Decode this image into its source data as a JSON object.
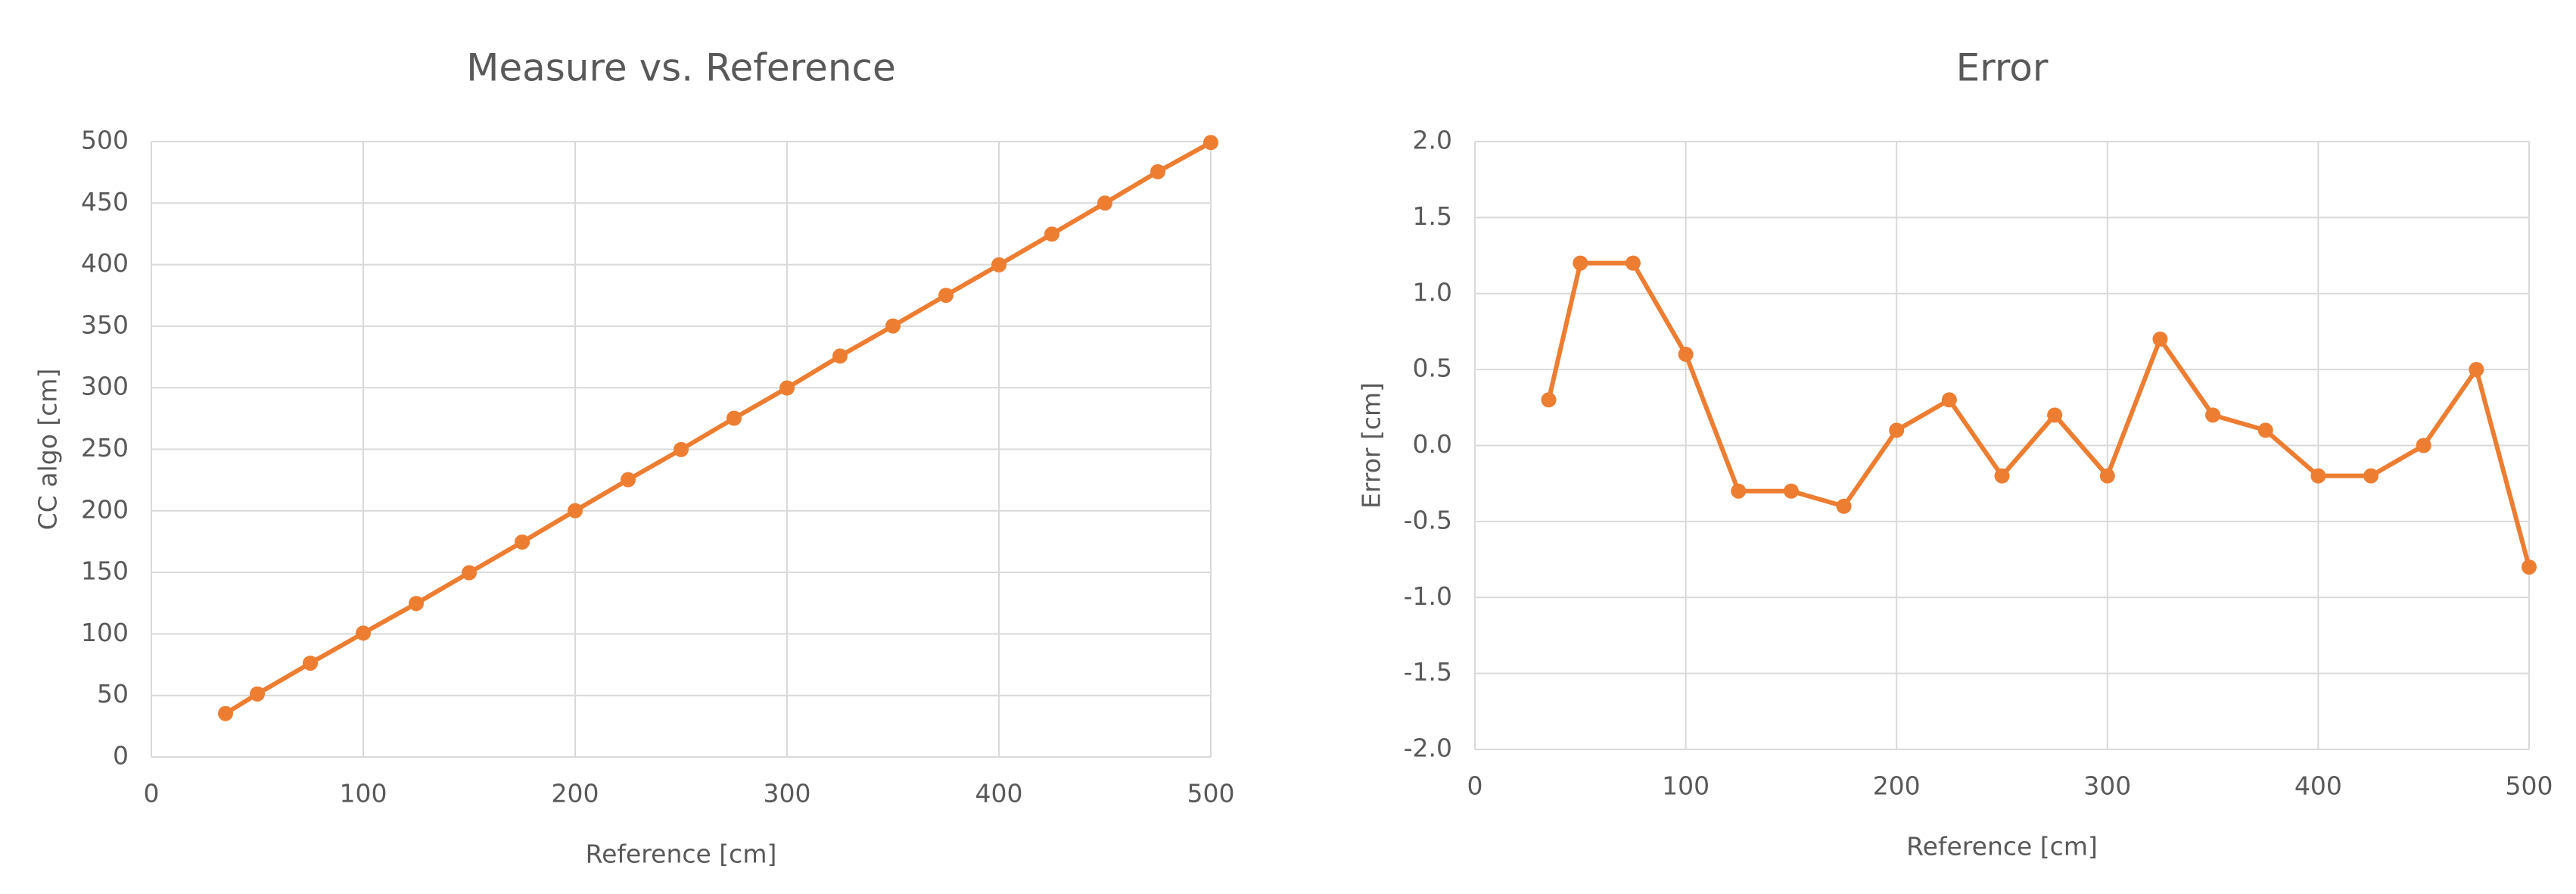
{
  "chart_data": [
    {
      "type": "line",
      "title": "Measure vs. Reference",
      "x_label": "Reference [cm]",
      "y_label": "CC algo [cm]",
      "x": [
        35,
        50,
        75,
        100,
        125,
        150,
        175,
        200,
        225,
        250,
        275,
        300,
        325,
        350,
        375,
        400,
        425,
        450,
        475,
        500
      ],
      "values": [
        35.3,
        51.2,
        76.2,
        100.6,
        124.7,
        149.7,
        174.6,
        200.1,
        225.3,
        249.8,
        275.2,
        299.8,
        325.7,
        350.2,
        375.1,
        399.8,
        424.8,
        450,
        475.5,
        499.2
      ],
      "color": "#ed7d31",
      "grid": true,
      "xlim": [
        0,
        500
      ],
      "xticks": [
        0,
        100,
        200,
        300,
        400,
        500
      ],
      "ylim": [
        0,
        500
      ],
      "yticks": [
        0,
        50,
        100,
        150,
        200,
        250,
        300,
        350,
        400,
        450,
        500
      ]
    },
    {
      "type": "line",
      "title": "Error",
      "x_label": "Reference [cm]",
      "y_label": "Error [cm]",
      "x": [
        35,
        50,
        75,
        100,
        125,
        150,
        175,
        200,
        225,
        250,
        275,
        300,
        325,
        350,
        375,
        400,
        425,
        450,
        475,
        500
      ],
      "values": [
        0.3,
        1.2,
        1.2,
        0.6,
        -0.3,
        -0.3,
        -0.4,
        0.1,
        0.3,
        -0.2,
        0.2,
        -0.2,
        0.7,
        0.2,
        0.1,
        -0.2,
        -0.2,
        0.0,
        0.5,
        -0.8
      ],
      "color": "#ed7d31",
      "grid": true,
      "xlim": [
        0,
        500
      ],
      "xticks": [
        0,
        100,
        200,
        300,
        400,
        500
      ],
      "ylim": [
        -2,
        2
      ],
      "yticks": [
        {
          "value": -2,
          "label": "-2.0"
        },
        -1.5,
        {
          "value": -1,
          "label": "-1.0"
        },
        -0.5,
        {
          "value": 0,
          "label": "0.0"
        },
        0.5,
        {
          "value": 1,
          "label": "1.0"
        },
        1.5,
        {
          "value": 2,
          "label": "2.0"
        }
      ]
    }
  ]
}
